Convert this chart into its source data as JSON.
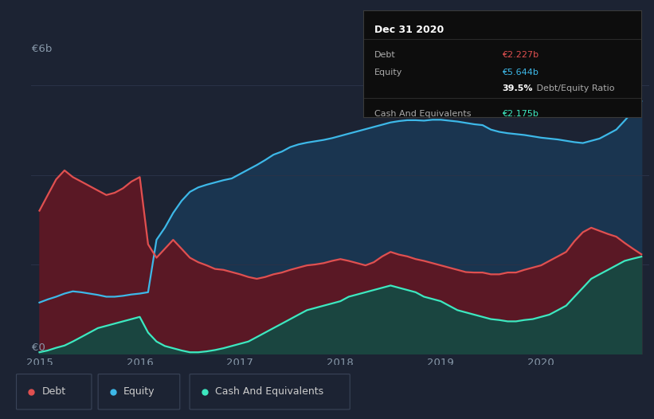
{
  "bg_color": "#1c2333",
  "plot_bg_color": "#1c2333",
  "grid_color": "#2a3248",
  "debt_color": "#e05050",
  "equity_color": "#3db8e8",
  "cash_color": "#3de8c0",
  "debt_fill": "#5a1825",
  "equity_fill": "#1a3550",
  "cash_fill": "#1a4540",
  "ylabel_text": "€6b",
  "y0_text": "€0",
  "ann_title": "Dec 31 2020",
  "ann_debt_lbl": "Debt",
  "ann_debt_val": "€2.227b",
  "ann_equity_lbl": "Equity",
  "ann_equity_val": "€5.644b",
  "ann_ratio_bold": "39.5%",
  "ann_ratio_rest": " Debt/Equity Ratio",
  "ann_cash_lbl": "Cash And Equivalents",
  "ann_cash_val": "€2.175b",
  "legend_labels": [
    "Debt",
    "Equity",
    "Cash And Equivalents"
  ],
  "x_ticks": [
    2015,
    2016,
    2017,
    2018,
    2019,
    2020
  ],
  "ylim": [
    0,
    6.5
  ],
  "time_points": [
    2015.0,
    2015.083,
    2015.167,
    2015.25,
    2015.333,
    2015.417,
    2015.5,
    2015.583,
    2015.667,
    2015.75,
    2015.833,
    2015.917,
    2016.0,
    2016.083,
    2016.167,
    2016.25,
    2016.333,
    2016.417,
    2016.5,
    2016.583,
    2016.667,
    2016.75,
    2016.833,
    2016.917,
    2017.0,
    2017.083,
    2017.167,
    2017.25,
    2017.333,
    2017.417,
    2017.5,
    2017.583,
    2017.667,
    2017.75,
    2017.833,
    2017.917,
    2018.0,
    2018.083,
    2018.167,
    2018.25,
    2018.333,
    2018.417,
    2018.5,
    2018.583,
    2018.667,
    2018.75,
    2018.833,
    2018.917,
    2019.0,
    2019.083,
    2019.167,
    2019.25,
    2019.333,
    2019.417,
    2019.5,
    2019.583,
    2019.667,
    2019.75,
    2019.833,
    2019.917,
    2020.0,
    2020.083,
    2020.167,
    2020.25,
    2020.333,
    2020.417,
    2020.5,
    2020.583,
    2020.667,
    2020.75,
    2020.833,
    2020.917,
    2021.0
  ],
  "debt_values": [
    3.2,
    3.55,
    3.9,
    4.1,
    3.95,
    3.85,
    3.75,
    3.65,
    3.55,
    3.6,
    3.7,
    3.85,
    3.95,
    2.45,
    2.15,
    2.35,
    2.55,
    2.35,
    2.15,
    2.05,
    1.98,
    1.9,
    1.88,
    1.83,
    1.78,
    1.72,
    1.68,
    1.72,
    1.78,
    1.82,
    1.88,
    1.93,
    1.98,
    2.0,
    2.03,
    2.08,
    2.12,
    2.08,
    2.03,
    1.98,
    2.05,
    2.18,
    2.28,
    2.22,
    2.18,
    2.12,
    2.08,
    2.03,
    1.98,
    1.93,
    1.88,
    1.83,
    1.82,
    1.82,
    1.78,
    1.78,
    1.82,
    1.82,
    1.88,
    1.93,
    1.98,
    2.08,
    2.18,
    2.28,
    2.52,
    2.72,
    2.82,
    2.75,
    2.68,
    2.62,
    2.48,
    2.35,
    2.227
  ],
  "equity_values": [
    1.15,
    1.22,
    1.28,
    1.35,
    1.4,
    1.38,
    1.35,
    1.32,
    1.28,
    1.28,
    1.3,
    1.33,
    1.35,
    1.38,
    2.55,
    2.82,
    3.15,
    3.42,
    3.62,
    3.72,
    3.78,
    3.83,
    3.88,
    3.92,
    4.02,
    4.12,
    4.22,
    4.33,
    4.45,
    4.52,
    4.62,
    4.68,
    4.72,
    4.75,
    4.78,
    4.82,
    4.87,
    4.92,
    4.97,
    5.02,
    5.07,
    5.12,
    5.17,
    5.2,
    5.22,
    5.22,
    5.21,
    5.23,
    5.23,
    5.21,
    5.19,
    5.16,
    5.13,
    5.11,
    5.01,
    4.96,
    4.93,
    4.91,
    4.89,
    4.86,
    4.83,
    4.81,
    4.79,
    4.76,
    4.73,
    4.71,
    4.76,
    4.81,
    4.91,
    5.01,
    5.21,
    5.42,
    5.644
  ],
  "cash_values": [
    0.04,
    0.08,
    0.14,
    0.19,
    0.28,
    0.38,
    0.48,
    0.58,
    0.63,
    0.68,
    0.73,
    0.78,
    0.83,
    0.48,
    0.28,
    0.18,
    0.13,
    0.08,
    0.04,
    0.04,
    0.06,
    0.09,
    0.13,
    0.18,
    0.23,
    0.28,
    0.38,
    0.48,
    0.58,
    0.68,
    0.78,
    0.88,
    0.98,
    1.03,
    1.08,
    1.13,
    1.18,
    1.28,
    1.33,
    1.38,
    1.43,
    1.48,
    1.53,
    1.48,
    1.43,
    1.38,
    1.28,
    1.23,
    1.18,
    1.08,
    0.98,
    0.93,
    0.88,
    0.83,
    0.78,
    0.76,
    0.73,
    0.73,
    0.76,
    0.78,
    0.83,
    0.88,
    0.98,
    1.08,
    1.28,
    1.48,
    1.68,
    1.78,
    1.88,
    1.98,
    2.08,
    2.13,
    2.175
  ]
}
